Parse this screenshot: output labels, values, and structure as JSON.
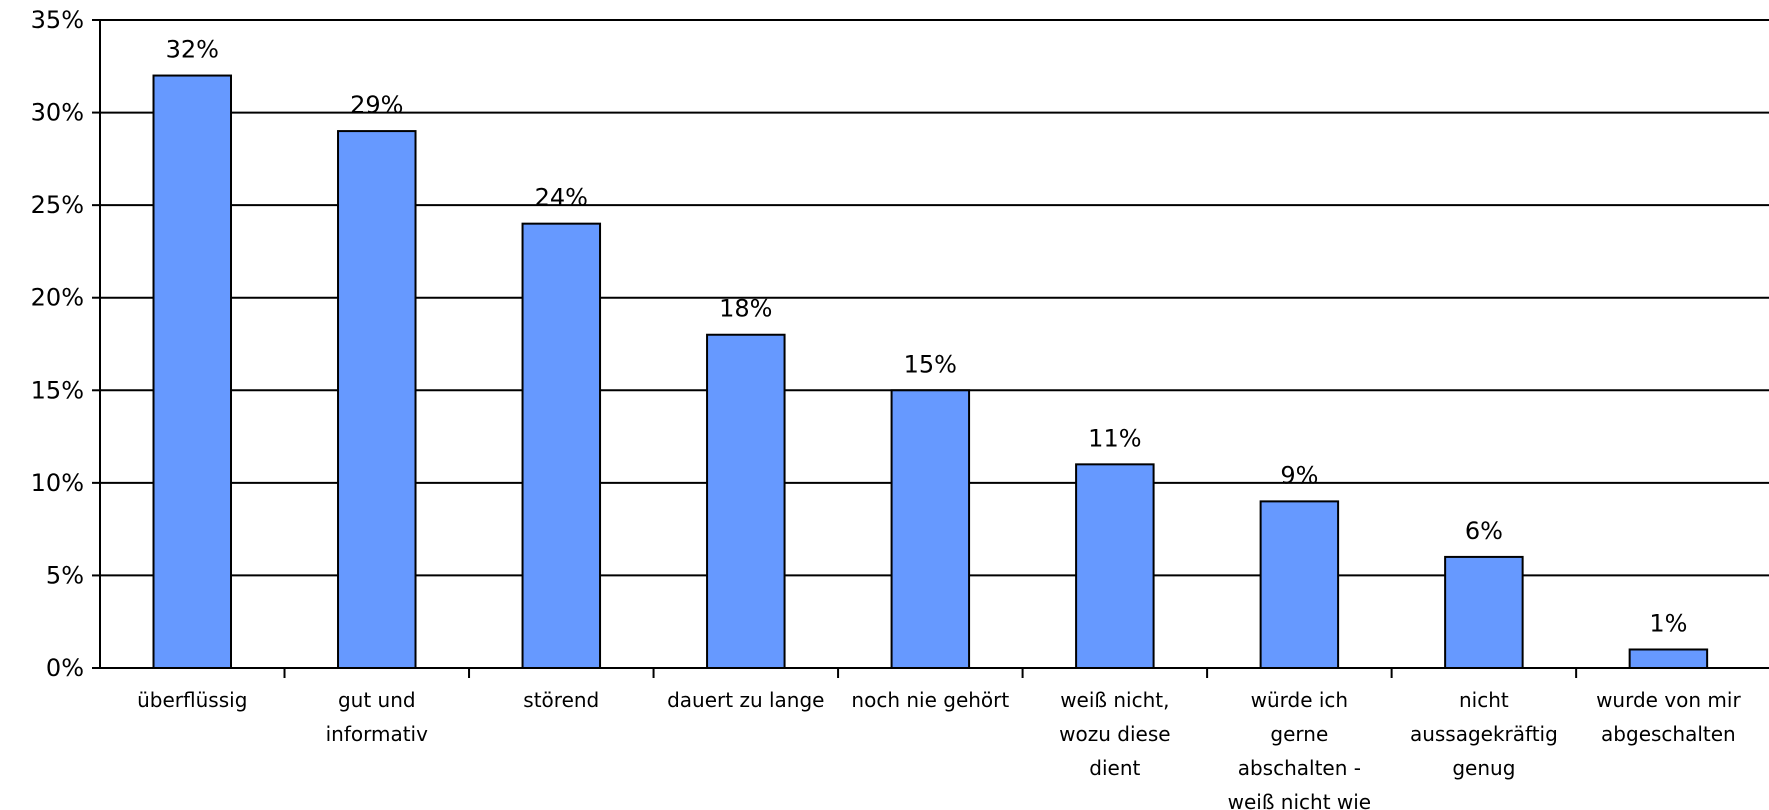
{
  "chart_data": {
    "type": "bar",
    "title": "",
    "xlabel": "",
    "ylabel": "",
    "ylim": [
      0,
      35
    ],
    "grid": true,
    "y_ticks": [
      "0%",
      "5%",
      "10%",
      "15%",
      "20%",
      "25%",
      "30%",
      "35%"
    ],
    "categories": [
      "überflüssig",
      "gut und informativ",
      "störend",
      "dauert zu lange",
      "noch nie gehört",
      "weiß nicht, wozu diese dient",
      "würde ich gerne abschalten - weiß nicht wie",
      "nicht aussagekräftig genug",
      "wurde von mir abgeschalten"
    ],
    "category_lines": [
      [
        "überflüssig"
      ],
      [
        "gut und",
        "informativ"
      ],
      [
        "störend"
      ],
      [
        "dauert zu lange"
      ],
      [
        "noch nie gehört"
      ],
      [
        "weiß nicht,",
        "wozu diese",
        "dient"
      ],
      [
        "würde ich",
        "gerne",
        "abschalten -",
        "weiß nicht wie"
      ],
      [
        "nicht",
        "aussagekräftig",
        "genug"
      ],
      [
        "wurde von mir",
        "abgeschalten"
      ]
    ],
    "values": [
      32,
      29,
      24,
      18,
      15,
      11,
      9,
      6,
      1
    ],
    "value_labels": [
      "32%",
      "29%",
      "24%",
      "18%",
      "15%",
      "11%",
      "9%",
      "6%",
      "1%"
    ],
    "bar_color": "#6699ff"
  }
}
